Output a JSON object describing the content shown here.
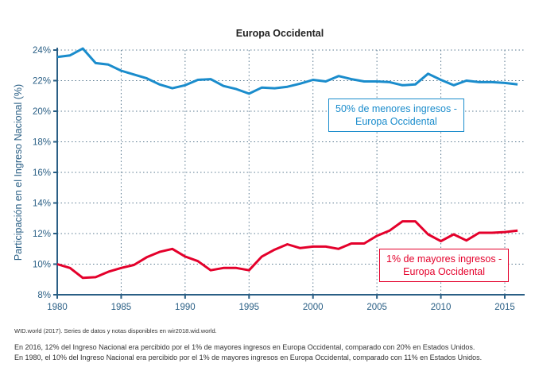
{
  "chart_data": {
    "type": "line",
    "title": "Europa Occidental",
    "xlabel": "",
    "ylabel": "Participación en el Ingreso Nacional (%)",
    "xlim": [
      1980,
      2017
    ],
    "ylim": [
      8,
      24
    ],
    "x_ticks": [
      "1980",
      "1985",
      "1990",
      "1995",
      "2000",
      "2005",
      "2010",
      "2015"
    ],
    "y_ticks": [
      "8%",
      "10%",
      "12%",
      "14%",
      "16%",
      "18%",
      "20%",
      "22%",
      "24%"
    ],
    "grid": true,
    "x": [
      1980,
      1981,
      1982,
      1983,
      1984,
      1985,
      1986,
      1987,
      1988,
      1989,
      1990,
      1991,
      1992,
      1993,
      1994,
      1995,
      1996,
      1997,
      1998,
      1999,
      2000,
      2001,
      2002,
      2003,
      2004,
      2005,
      2006,
      2007,
      2008,
      2009,
      2010,
      2011,
      2012,
      2013,
      2014,
      2015,
      2016
    ],
    "series": [
      {
        "name": "50% de menores ingresos - Europa Occidental",
        "label_line1": "50% de menores ingresos -",
        "label_line2": "Europa Occidental",
        "color": "#1a8ccc",
        "values": [
          23.55,
          23.65,
          24.1,
          23.15,
          23.05,
          22.65,
          22.4,
          22.15,
          21.75,
          21.5,
          21.7,
          22.05,
          22.1,
          21.65,
          21.45,
          21.15,
          21.55,
          21.5,
          21.6,
          21.8,
          22.05,
          21.95,
          22.3,
          22.1,
          21.95,
          21.95,
          21.9,
          21.7,
          21.75,
          22.45,
          22.05,
          21.7,
          22.0,
          21.9,
          21.9,
          21.85,
          21.75
        ]
      },
      {
        "name": "1% de mayores ingresos - Europa Occidental",
        "label_line1": "1% de mayores ingresos -",
        "label_line2": "Europa Occidental",
        "color": "#e4002b",
        "values": [
          10.0,
          9.75,
          9.1,
          9.15,
          9.5,
          9.75,
          9.95,
          10.45,
          10.8,
          11.0,
          10.5,
          10.2,
          9.6,
          9.75,
          9.75,
          9.6,
          10.5,
          10.95,
          11.3,
          11.05,
          11.15,
          11.15,
          11.0,
          11.35,
          11.35,
          11.85,
          12.2,
          12.8,
          12.8,
          11.95,
          11.5,
          11.95,
          11.55,
          12.05,
          12.05,
          12.1,
          12.2
        ]
      }
    ]
  },
  "source": "WID.world (2017). Series de datos y notas disponibles en wir2018.wid.world.",
  "notes": [
    "En 2016, 12% del Ingreso Nacional era percibido por el 1% de mayores ingresos en Europa Occidental, comparado con 20% en Estados Unidos.",
    "En 1980, el 10% del Ingreso Nacional era percibido por el 1% de mayores ingresos en Europa Occidental, comparado con 11% en Estados Unidos."
  ]
}
